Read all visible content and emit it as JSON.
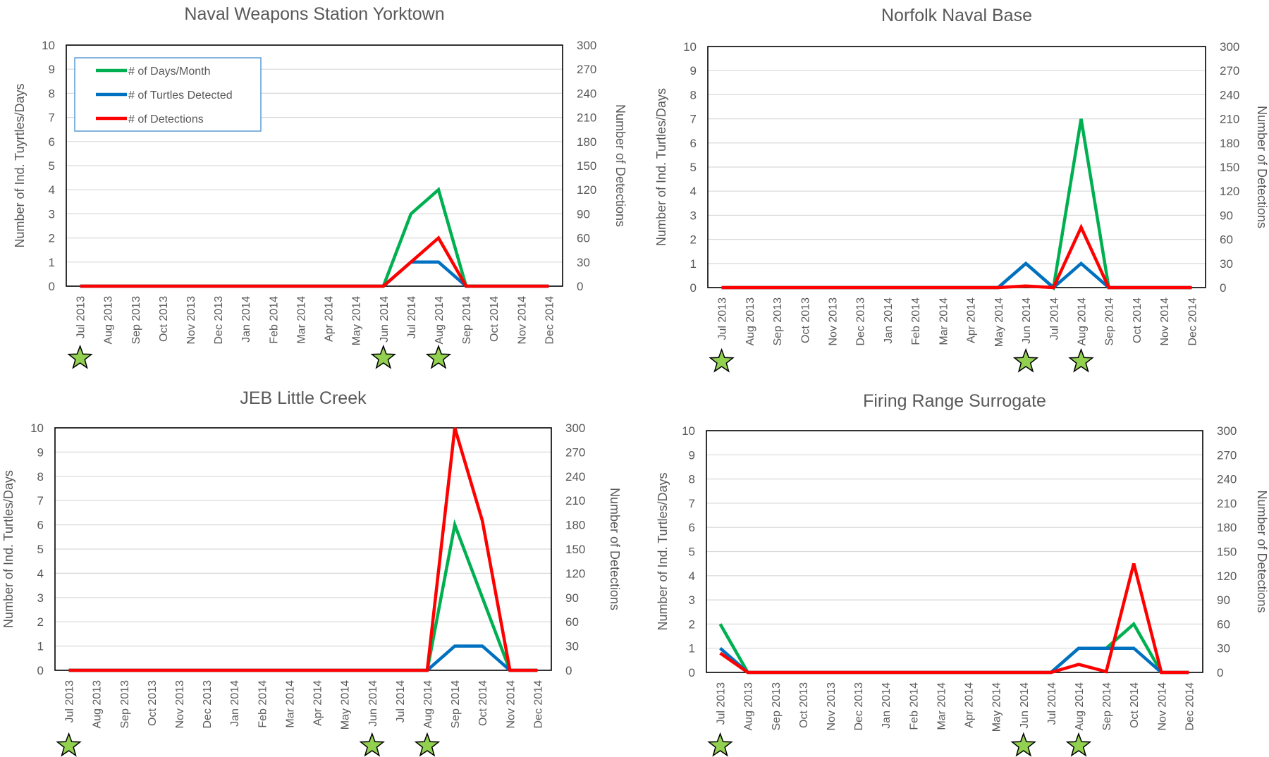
{
  "styles": {
    "days_color": "#00b050",
    "turtles_color": "#0070c0",
    "detections_color": "#ff0000",
    "grid_color": "#d9d9d9",
    "text_color": "#595959",
    "star_fill": "#92d050",
    "star_stroke": "#000000"
  },
  "chart_data": [
    {
      "type": "line",
      "title": "Naval Weapons Station Yorktown",
      "categories": [
        "Jul 2013",
        "Aug 2013",
        "Sep 2013",
        "Oct 2013",
        "Nov 2013",
        "Dec 2013",
        "Jan 2014",
        "Feb 2014",
        "Mar 2014",
        "Apr 2014",
        "May 2014",
        "Jun 2014",
        "Jul 2014",
        "Aug 2014",
        "Sep 2014",
        "Oct 2014",
        "Nov 2014",
        "Dec 2014"
      ],
      "ylabel": "Number of Ind. Tuyrtles/Days",
      "ylabel_right": "Number of Detections",
      "ylim": [
        0,
        10
      ],
      "ylim_right": [
        0,
        300
      ],
      "y_ticks": [
        0,
        1,
        2,
        3,
        4,
        5,
        6,
        7,
        8,
        9,
        10
      ],
      "y_ticks_right": [
        0,
        30,
        60,
        90,
        120,
        150,
        180,
        210,
        240,
        270,
        300
      ],
      "legend": "top-left",
      "series": [
        {
          "name": "# of Days/Month",
          "axis": "left",
          "values": [
            0,
            0,
            0,
            0,
            0,
            0,
            0,
            0,
            0,
            0,
            0,
            0,
            3,
            4,
            0,
            0,
            0,
            0
          ]
        },
        {
          "name": "# of Turtles Detected",
          "axis": "left",
          "values": [
            0,
            0,
            0,
            0,
            0,
            0,
            0,
            0,
            0,
            0,
            0,
            0,
            1,
            1,
            0,
            0,
            0,
            0
          ]
        },
        {
          "name": "# of Detections",
          "axis": "right",
          "values": [
            0,
            0,
            0,
            0,
            0,
            0,
            0,
            0,
            0,
            0,
            0,
            0,
            30,
            60,
            0,
            0,
            0,
            0
          ]
        }
      ],
      "star_months": [
        "Jul 2013",
        "Jun 2014",
        "Aug 2014"
      ]
    },
    {
      "type": "line",
      "title": "Norfolk Naval Base",
      "categories": [
        "Jul 2013",
        "Aug 2013",
        "Sep 2013",
        "Oct 2013",
        "Nov 2013",
        "Dec 2013",
        "Jan 2014",
        "Feb 2014",
        "Mar 2014",
        "Apr 2014",
        "May 2014",
        "Jun 2014",
        "Jul 2014",
        "Aug 2014",
        "Sep 2014",
        "Oct 2014",
        "Nov 2014",
        "Dec 2014"
      ],
      "ylabel": "Number of Ind. Turtles/Days",
      "ylabel_right": "Number of Detections",
      "ylim": [
        0,
        10
      ],
      "ylim_right": [
        0,
        300
      ],
      "y_ticks": [
        0,
        1,
        2,
        3,
        4,
        5,
        6,
        7,
        8,
        9,
        10
      ],
      "y_ticks_right": [
        0,
        30,
        60,
        90,
        120,
        150,
        180,
        210,
        240,
        270,
        300
      ],
      "series": [
        {
          "name": "# of Days/Month",
          "axis": "left",
          "values": [
            0,
            0,
            0,
            0,
            0,
            0,
            0,
            0,
            0,
            0,
            0,
            1,
            0,
            7,
            0,
            0,
            0,
            0
          ]
        },
        {
          "name": "# of Turtles Detected",
          "axis": "left",
          "values": [
            0,
            0,
            0,
            0,
            0,
            0,
            0,
            0,
            0,
            0,
            0,
            1,
            0,
            1,
            0,
            0,
            0,
            0
          ]
        },
        {
          "name": "# of Detections",
          "axis": "right",
          "values": [
            0,
            0,
            0,
            0,
            0,
            0,
            0,
            0,
            0,
            0,
            0,
            2,
            0,
            75,
            0,
            0,
            0,
            0
          ]
        }
      ],
      "star_months": [
        "Jul 2013",
        "Jun 2014",
        "Aug 2014"
      ]
    },
    {
      "type": "line",
      "title": "JEB Little Creek",
      "categories": [
        "Jul 2013",
        "Aug 2013",
        "Sep 2013",
        "Oct 2013",
        "Nov 2013",
        "Dec 2013",
        "Jan 2014",
        "Feb 2014",
        "Mar 2014",
        "Apr 2014",
        "May 2014",
        "Jun 2014",
        "Jul 2014",
        "Aug 2014",
        "Sep 2014",
        "Oct 2014",
        "Nov 2014",
        "Dec 2014"
      ],
      "ylabel": "Number of Ind. Turtles/Days",
      "ylabel_right": "Number of Detections",
      "ylim": [
        0,
        10
      ],
      "ylim_right": [
        0,
        300
      ],
      "y_ticks": [
        0,
        1,
        2,
        3,
        4,
        5,
        6,
        7,
        8,
        9,
        10
      ],
      "y_ticks_right": [
        0,
        30,
        60,
        90,
        120,
        150,
        180,
        210,
        240,
        270,
        300
      ],
      "series": [
        {
          "name": "# of Days/Month",
          "axis": "left",
          "values": [
            0,
            0,
            0,
            0,
            0,
            0,
            0,
            0,
            0,
            0,
            0,
            0,
            0,
            0,
            6,
            3,
            0,
            0
          ]
        },
        {
          "name": "# of Turtles Detected",
          "axis": "left",
          "values": [
            0,
            0,
            0,
            0,
            0,
            0,
            0,
            0,
            0,
            0,
            0,
            0,
            0,
            0,
            1,
            1,
            0,
            0
          ]
        },
        {
          "name": "# of Detections",
          "axis": "right",
          "values": [
            0,
            0,
            0,
            0,
            0,
            0,
            0,
            0,
            0,
            0,
            0,
            0,
            0,
            0,
            300,
            185,
            0,
            0
          ]
        }
      ],
      "star_months": [
        "Jul 2013",
        "Jun 2014",
        "Aug 2014"
      ]
    },
    {
      "type": "line",
      "title": "Firing Range Surrogate",
      "categories": [
        "Jul 2013",
        "Aug 2013",
        "Sep 2013",
        "Oct 2013",
        "Nov 2013",
        "Dec 2013",
        "Jan 2014",
        "Feb 2014",
        "Mar 2014",
        "Apr 2014",
        "May 2014",
        "Jun 2014",
        "Jul 2014",
        "Aug 2014",
        "Sep 2014",
        "Oct 2014",
        "Nov 2014",
        "Dec 2014"
      ],
      "ylabel": "Number of Ind. Turtles/Days",
      "ylabel_right": "Number of Detections",
      "ylim": [
        0,
        10
      ],
      "ylim_right": [
        0,
        300
      ],
      "y_ticks": [
        0,
        1,
        2,
        3,
        4,
        5,
        6,
        7,
        8,
        9,
        10
      ],
      "y_ticks_right": [
        0,
        30,
        60,
        90,
        120,
        150,
        180,
        210,
        240,
        270,
        300
      ],
      "series": [
        {
          "name": "# of Days/Month",
          "axis": "left",
          "values": [
            2,
            0,
            0,
            0,
            0,
            0,
            0,
            0,
            0,
            0,
            0,
            0,
            0,
            1,
            1,
            2,
            0,
            0
          ]
        },
        {
          "name": "# of Turtles Detected",
          "axis": "left",
          "values": [
            1,
            0,
            0,
            0,
            0,
            0,
            0,
            0,
            0,
            0,
            0,
            0,
            0,
            1,
            1,
            1,
            0,
            0
          ]
        },
        {
          "name": "# of Detections",
          "axis": "right",
          "values": [
            24,
            0,
            0,
            0,
            0,
            0,
            0,
            0,
            0,
            0,
            0,
            0,
            0,
            10,
            1,
            135,
            0,
            0
          ]
        }
      ],
      "star_months": [
        "Jul 2013",
        "Jun 2014",
        "Aug 2014"
      ]
    }
  ]
}
